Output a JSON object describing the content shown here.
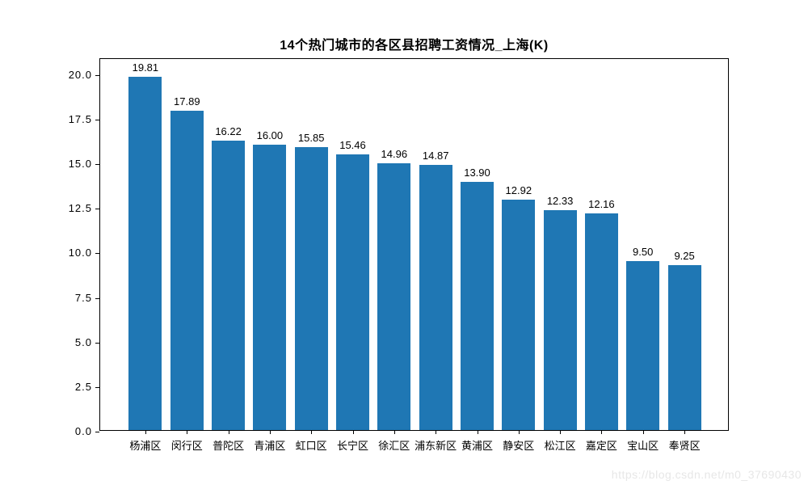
{
  "page": {
    "watermark": "https://blog.csdn.net/m0_37690430"
  },
  "chart_data": {
    "type": "bar",
    "title": "14个热门城市的各区县招聘工资情况_上海(K)",
    "categories": [
      "杨浦区",
      "闵行区",
      "普陀区",
      "青浦区",
      "虹口区",
      "长宁区",
      "徐汇区",
      "浦东新区",
      "黄浦区",
      "静安区",
      "松江区",
      "嘉定区",
      "宝山区",
      "奉贤区"
    ],
    "values": [
      19.81,
      17.89,
      16.22,
      16.0,
      15.85,
      15.46,
      14.96,
      14.87,
      13.9,
      12.92,
      12.33,
      12.16,
      9.5,
      9.25
    ],
    "value_labels": [
      "19.81",
      "17.89",
      "16.22",
      "16.00",
      "15.85",
      "15.46",
      "14.96",
      "14.87",
      "13.90",
      "12.92",
      "12.33",
      "12.16",
      "9.50",
      "9.25"
    ],
    "xlabel": "",
    "ylabel": "",
    "yticks": [
      0.0,
      2.5,
      5.0,
      7.5,
      10.0,
      12.5,
      15.0,
      17.5,
      20.0
    ],
    "ytick_labels": [
      "0.0",
      "2.5",
      "5.0",
      "7.5",
      "10.0",
      "12.5",
      "15.0",
      "17.5",
      "20.0"
    ],
    "ylim": [
      0,
      20.9
    ],
    "grid": false,
    "legend": null,
    "bar_color": "#1f77b4"
  }
}
